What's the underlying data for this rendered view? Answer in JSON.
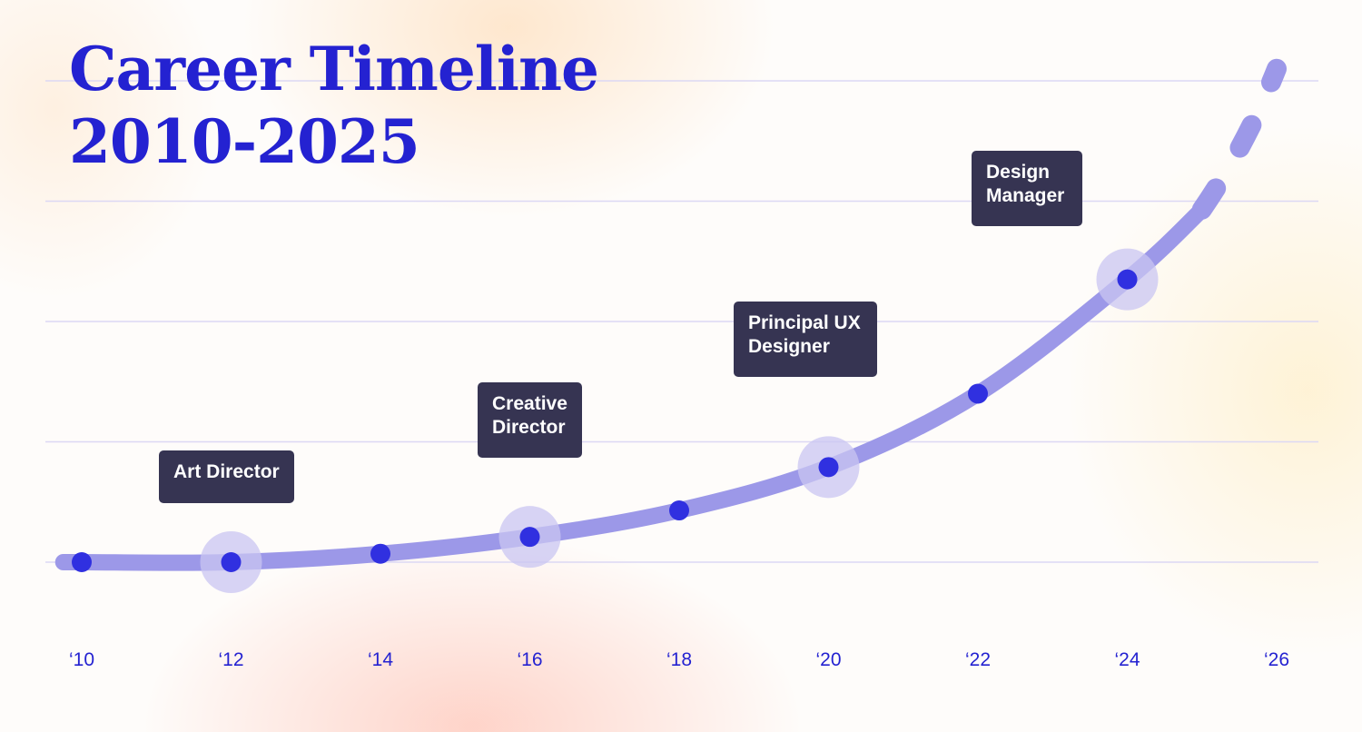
{
  "title": "Career Timeline",
  "subtitle": "2010-2025",
  "colors": {
    "accent": "#2422d1",
    "curve": "#9c98e8",
    "dot": "#3030e0",
    "halo": "#c9c5f2",
    "label_bg": "#363452",
    "grid": "#dcd8f4"
  },
  "chart_data": {
    "type": "line",
    "title": "Career Timeline 2010-2025",
    "x_tick_labels": [
      "‘10",
      "‘12",
      "‘14",
      "‘16",
      "‘18",
      "‘20",
      "‘22",
      "‘24",
      "‘26"
    ],
    "xlim": [
      2010,
      2026
    ],
    "ylim": [
      0,
      4
    ],
    "grid": true,
    "x": [
      2010,
      2012,
      2014,
      2016,
      2018,
      2020,
      2022,
      2024
    ],
    "y": [
      0.0,
      0.0,
      0.07,
      0.21,
      0.43,
      0.79,
      1.4,
      2.35
    ],
    "projection": {
      "x": [
        2025,
        2026
      ],
      "y": [
        2.93,
        4.1
      ]
    },
    "milestones": [
      {
        "label": "Art Director",
        "x": 2012,
        "y": 0.0
      },
      {
        "label": "Creative Director",
        "x": 2016,
        "y": 0.21
      },
      {
        "label": "Principal UX Designer",
        "x": 2020,
        "y": 0.79
      },
      {
        "label": "Design Manager",
        "x": 2024,
        "y": 2.35
      }
    ]
  }
}
